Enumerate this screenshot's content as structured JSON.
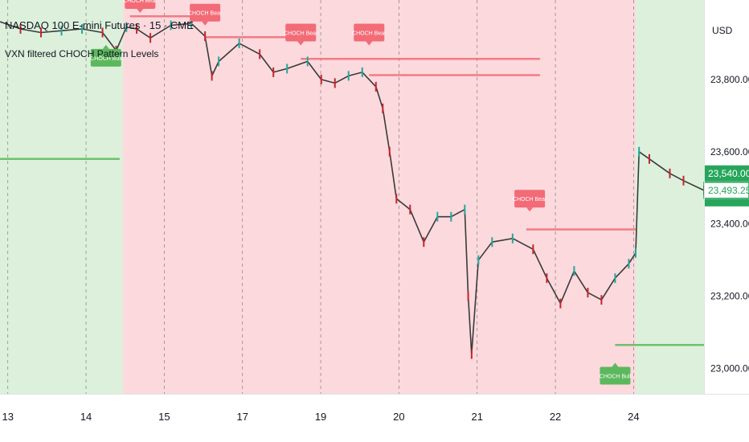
{
  "header": {
    "title": "NASDAQ 100 E-mini Futures · 15 · CME",
    "indicator": "VXN filtered CHOCH Pattern Levels",
    "currency": "USD"
  },
  "colors": {
    "bull_zone": "#dcf0dc",
    "bear_zone": "#fbd9dd",
    "bull": "#5cb85c",
    "bear": "#f26b77",
    "candle_up": "#26a69a",
    "candle_down": "#c1272d",
    "price_box": "#26a65b"
  },
  "chart_data": {
    "type": "line",
    "title": "NASDAQ 100 E-mini Futures · 15 · CME",
    "xlabel": "",
    "ylabel": "",
    "x_ticks": [
      "13",
      "14",
      "15",
      "17",
      "19",
      "20",
      "21",
      "22",
      "24"
    ],
    "y_ticks": [
      23000,
      23200,
      23400,
      23600,
      23800
    ],
    "ylim": [
      22930,
      24020
    ],
    "xlim": [
      0,
      10.3
    ],
    "grid": "vertical-dashed",
    "zones": [
      {
        "regime": "bull",
        "from": 0,
        "to": 1.8
      },
      {
        "regime": "bear",
        "from": 1.8,
        "to": 9.3
      },
      {
        "regime": "bull",
        "from": 9.3,
        "to": 10.3
      }
    ],
    "series": [
      {
        "x": [
          0,
          0.3,
          0.6,
          0.9,
          1.2,
          1.5,
          1.7,
          1.85,
          2.0,
          2.2,
          2.5,
          2.8,
          3.0,
          3.1,
          3.2,
          3.5,
          3.8,
          4.0,
          4.2,
          4.5,
          4.7,
          4.9,
          5.1,
          5.3,
          5.5,
          5.6,
          5.7,
          5.8,
          6.0,
          6.2,
          6.4,
          6.6,
          6.8,
          6.85,
          6.9,
          7.0,
          7.2,
          7.5,
          7.8,
          8.0,
          8.2,
          8.4,
          8.6,
          8.8,
          9.0,
          9.2,
          9.3,
          9.35,
          9.5,
          9.8,
          10.0,
          10.3
        ],
        "values": [
          23960,
          23940,
          23930,
          23935,
          23940,
          23930,
          23880,
          23945,
          23940,
          23915,
          23950,
          23955,
          23920,
          23810,
          23850,
          23900,
          23870,
          23820,
          23830,
          23850,
          23800,
          23790,
          23810,
          23820,
          23780,
          23720,
          23600,
          23470,
          23440,
          23350,
          23420,
          23420,
          23440,
          23200,
          23040,
          23300,
          23350,
          23360,
          23330,
          23250,
          23180,
          23270,
          23210,
          23190,
          23250,
          23290,
          23320,
          23600,
          23580,
          23540,
          23520,
          23493
        ]
      }
    ],
    "levels": [
      {
        "type": "bull",
        "value": 23580,
        "x_from": 0,
        "x_to": 1.75
      },
      {
        "type": "bear",
        "value": 23975,
        "x_from": 1.9,
        "x_to": 3.1
      },
      {
        "type": "bear",
        "value": 23917,
        "x_from": 3.0,
        "x_to": 4.45
      },
      {
        "type": "bear",
        "value": 23857,
        "x_from": 4.4,
        "x_to": 7.9
      },
      {
        "type": "bear",
        "value": 23812,
        "x_from": 5.4,
        "x_to": 7.9
      },
      {
        "type": "bear",
        "value": 23385,
        "x_from": 7.7,
        "x_to": 9.3
      },
      {
        "type": "bull",
        "value": 23065,
        "x_from": 9.0,
        "x_to": 10.3
      }
    ],
    "annotations": [
      {
        "text": "CHOCH Bear",
        "type": "bear",
        "x": 2.05,
        "value": 24020
      },
      {
        "text": "CHOCH Bear",
        "type": "bear",
        "x": 3.0,
        "value": 23985
      },
      {
        "text": "CHOCH Bear",
        "type": "bear",
        "x": 4.4,
        "value": 23930
      },
      {
        "text": "CHOCH Bear",
        "type": "bear",
        "x": 5.4,
        "value": 23930
      },
      {
        "text": "CHOCH Bear",
        "type": "bear",
        "x": 7.75,
        "value": 23470
      },
      {
        "text": "CHOCH Bull",
        "type": "bull",
        "x": 1.55,
        "value": 23860
      },
      {
        "text": "CHOCH Bull",
        "type": "bull",
        "x": 9.0,
        "value": 22980
      }
    ],
    "price_labels": {
      "upper": "23,540.00",
      "last": "23,493.25",
      "upper_value": 23540,
      "last_value": 23493.25
    }
  }
}
